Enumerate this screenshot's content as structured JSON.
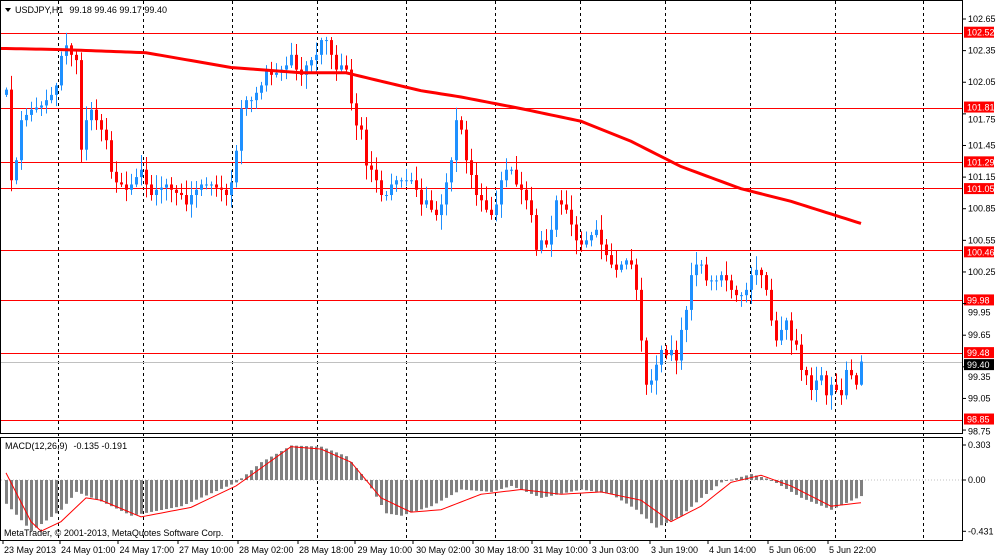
{
  "header": {
    "symbol": "USDJPY,H1",
    "ohlc": "99.18 99.46 99.17 99.40",
    "menu_icon": "triangle-down-icon"
  },
  "macd_header": {
    "label": "MACD(12,26,9)",
    "values": "-0.135 -0.191"
  },
  "copyright": "MetaTrader, © 2001-2013, MetaQuotes Software Corp.",
  "colors": {
    "bull": "#1e90ff",
    "bear": "#ff0000",
    "level": "#ff0000",
    "ma": "#ff0000",
    "histogram": "#808080",
    "signal": "#ff0000",
    "current_price": "#000000"
  },
  "chart_data": [
    {
      "type": "candlestick",
      "symbol": "USDJPY",
      "timeframe": "H1",
      "last_bar": {
        "open": 99.18,
        "high": 99.46,
        "low": 99.17,
        "close": 99.4
      },
      "closes": [
        101.98,
        101.12,
        101.31,
        101.69,
        101.74,
        101.79,
        101.81,
        101.83,
        101.88,
        101.93,
        102.02,
        102.3,
        102.4,
        102.31,
        102.26,
        101.41,
        101.69,
        101.79,
        101.69,
        101.6,
        101.5,
        101.2,
        101.1,
        101.08,
        101.03,
        101.08,
        101.15,
        101.22,
        101.08,
        100.98,
        101.03,
        101.05,
        101.08,
        101.03,
        101.0,
        100.98,
        100.89,
        100.98,
        101.03,
        101.08,
        101.08,
        101.08,
        101.05,
        101.03,
        100.98,
        101.1,
        101.4,
        101.8,
        101.88,
        101.88,
        101.95,
        102.02,
        102.17,
        102.12,
        102.14,
        102.17,
        102.21,
        102.31,
        102.17,
        102.12,
        102.21,
        102.26,
        102.31,
        102.45,
        102.45,
        102.31,
        102.17,
        102.21,
        102.17,
        101.85,
        101.64,
        101.6,
        101.26,
        101.22,
        101.12,
        100.98,
        100.98,
        101.08,
        101.12,
        101.12,
        101.12,
        101.12,
        101.03,
        100.89,
        100.93,
        100.84,
        100.79,
        100.89,
        101.1,
        101.31,
        101.69,
        101.6,
        101.31,
        101.17,
        100.98,
        100.93,
        100.84,
        100.79,
        100.89,
        101.12,
        101.22,
        101.22,
        101.08,
        101.03,
        100.93,
        100.79,
        100.46,
        100.55,
        100.51,
        100.65,
        100.93,
        100.89,
        100.84,
        100.7,
        100.55,
        100.51,
        100.55,
        100.6,
        100.65,
        100.51,
        100.41,
        100.32,
        100.27,
        100.32,
        100.36,
        100.32,
        100.08,
        99.6,
        99.18,
        99.22,
        99.37,
        99.51,
        99.46,
        99.51,
        99.41,
        99.7,
        99.89,
        100.22,
        100.32,
        100.32,
        100.17,
        100.17,
        100.17,
        100.22,
        100.17,
        100.08,
        100.03,
        100.03,
        100.08,
        100.22,
        100.27,
        100.22,
        100.08,
        99.79,
        99.6,
        99.7,
        99.79,
        99.6,
        99.56,
        99.32,
        99.27,
        99.13,
        99.22,
        99.27,
        99.08,
        99.18,
        99.13,
        99.08,
        99.32,
        99.27,
        99.18,
        99.4
      ],
      "moving_average": {
        "bar_values": [
          [
            0,
            102.37
          ],
          [
            11,
            102.36
          ],
          [
            28,
            102.33
          ],
          [
            45,
            102.19
          ],
          [
            59,
            102.14
          ],
          [
            68,
            102.14
          ],
          [
            75,
            102.06
          ],
          [
            83,
            101.97
          ],
          [
            91,
            101.91
          ],
          [
            103,
            101.8
          ],
          [
            115,
            101.68
          ],
          [
            125,
            101.49
          ],
          [
            135,
            101.25
          ],
          [
            147,
            101.04
          ],
          [
            157,
            100.92
          ],
          [
            171,
            100.71
          ]
        ]
      },
      "levels": [
        102.52,
        101.81,
        101.29,
        101.05,
        100.46,
        99.98,
        99.48,
        98.85
      ],
      "current_price": 99.4,
      "y_ticks": [
        "102.65",
        "102.35",
        "102.05",
        "101.75",
        "101.45",
        "101.15",
        "100.85",
        "100.55",
        "100.25",
        "99.95",
        "99.65",
        "99.35",
        "99.05",
        "98.75"
      ],
      "ylim": [
        98.7,
        102.82
      ],
      "x_ticks": [
        "23 May 2013",
        "24 May 01:00",
        "24 May 17:00",
        "27 May 10:00",
        "28 May 02:00",
        "28 May 18:00",
        "29 May 10:00",
        "30 May 02:00",
        "30 May 18:00",
        "31 May 10:00",
        "3 Jun 03:00",
        "3 Jun 19:00",
        "4 Jun 14:00",
        "5 Jun 06:00",
        "5 Jun 22:00"
      ],
      "grid": "vertical dashed"
    },
    {
      "type": "bar+line",
      "name": "MACD(12,26,9)",
      "histogram_points": [
        [
          0,
          -0.2
        ],
        [
          5,
          -0.43
        ],
        [
          11,
          -0.25
        ],
        [
          14,
          -0.1
        ],
        [
          19,
          -0.18
        ],
        [
          25,
          -0.3
        ],
        [
          35,
          -0.22
        ],
        [
          46,
          -0.02
        ],
        [
          51,
          0.15
        ],
        [
          57,
          0.29
        ],
        [
          63,
          0.28
        ],
        [
          68,
          0.2
        ],
        [
          72,
          0.0
        ],
        [
          76,
          -0.28
        ],
        [
          79,
          -0.3
        ],
        [
          85,
          -0.22
        ],
        [
          91,
          -0.08
        ],
        [
          97,
          -0.1
        ],
        [
          101,
          -0.05
        ],
        [
          107,
          -0.15
        ],
        [
          115,
          -0.08
        ],
        [
          121,
          -0.12
        ],
        [
          126,
          -0.25
        ],
        [
          130,
          -0.4
        ],
        [
          135,
          -0.3
        ],
        [
          139,
          -0.15
        ],
        [
          143,
          -0.02
        ],
        [
          149,
          0.05
        ],
        [
          153,
          0.0
        ],
        [
          159,
          -0.15
        ],
        [
          165,
          -0.25
        ],
        [
          171,
          -0.135
        ]
      ],
      "signal_points": [
        [
          0,
          0.06
        ],
        [
          5,
          -0.35
        ],
        [
          7,
          -0.43
        ],
        [
          11,
          -0.35
        ],
        [
          16,
          -0.15
        ],
        [
          19,
          -0.17
        ],
        [
          27,
          -0.31
        ],
        [
          37,
          -0.23
        ],
        [
          46,
          -0.05
        ],
        [
          51,
          0.1
        ],
        [
          57,
          0.28
        ],
        [
          63,
          0.26
        ],
        [
          69,
          0.15
        ],
        [
          75,
          -0.15
        ],
        [
          81,
          -0.27
        ],
        [
          87,
          -0.25
        ],
        [
          95,
          -0.12
        ],
        [
          103,
          -0.08
        ],
        [
          111,
          -0.12
        ],
        [
          119,
          -0.1
        ],
        [
          127,
          -0.17
        ],
        [
          133,
          -0.35
        ],
        [
          139,
          -0.22
        ],
        [
          145,
          -0.02
        ],
        [
          151,
          0.04
        ],
        [
          157,
          -0.05
        ],
        [
          165,
          -0.22
        ],
        [
          171,
          -0.191
        ]
      ],
      "y_ticks": [
        "0.303",
        "0.00",
        "-0.431"
      ],
      "ylim": [
        -0.431,
        0.303
      ]
    }
  ]
}
